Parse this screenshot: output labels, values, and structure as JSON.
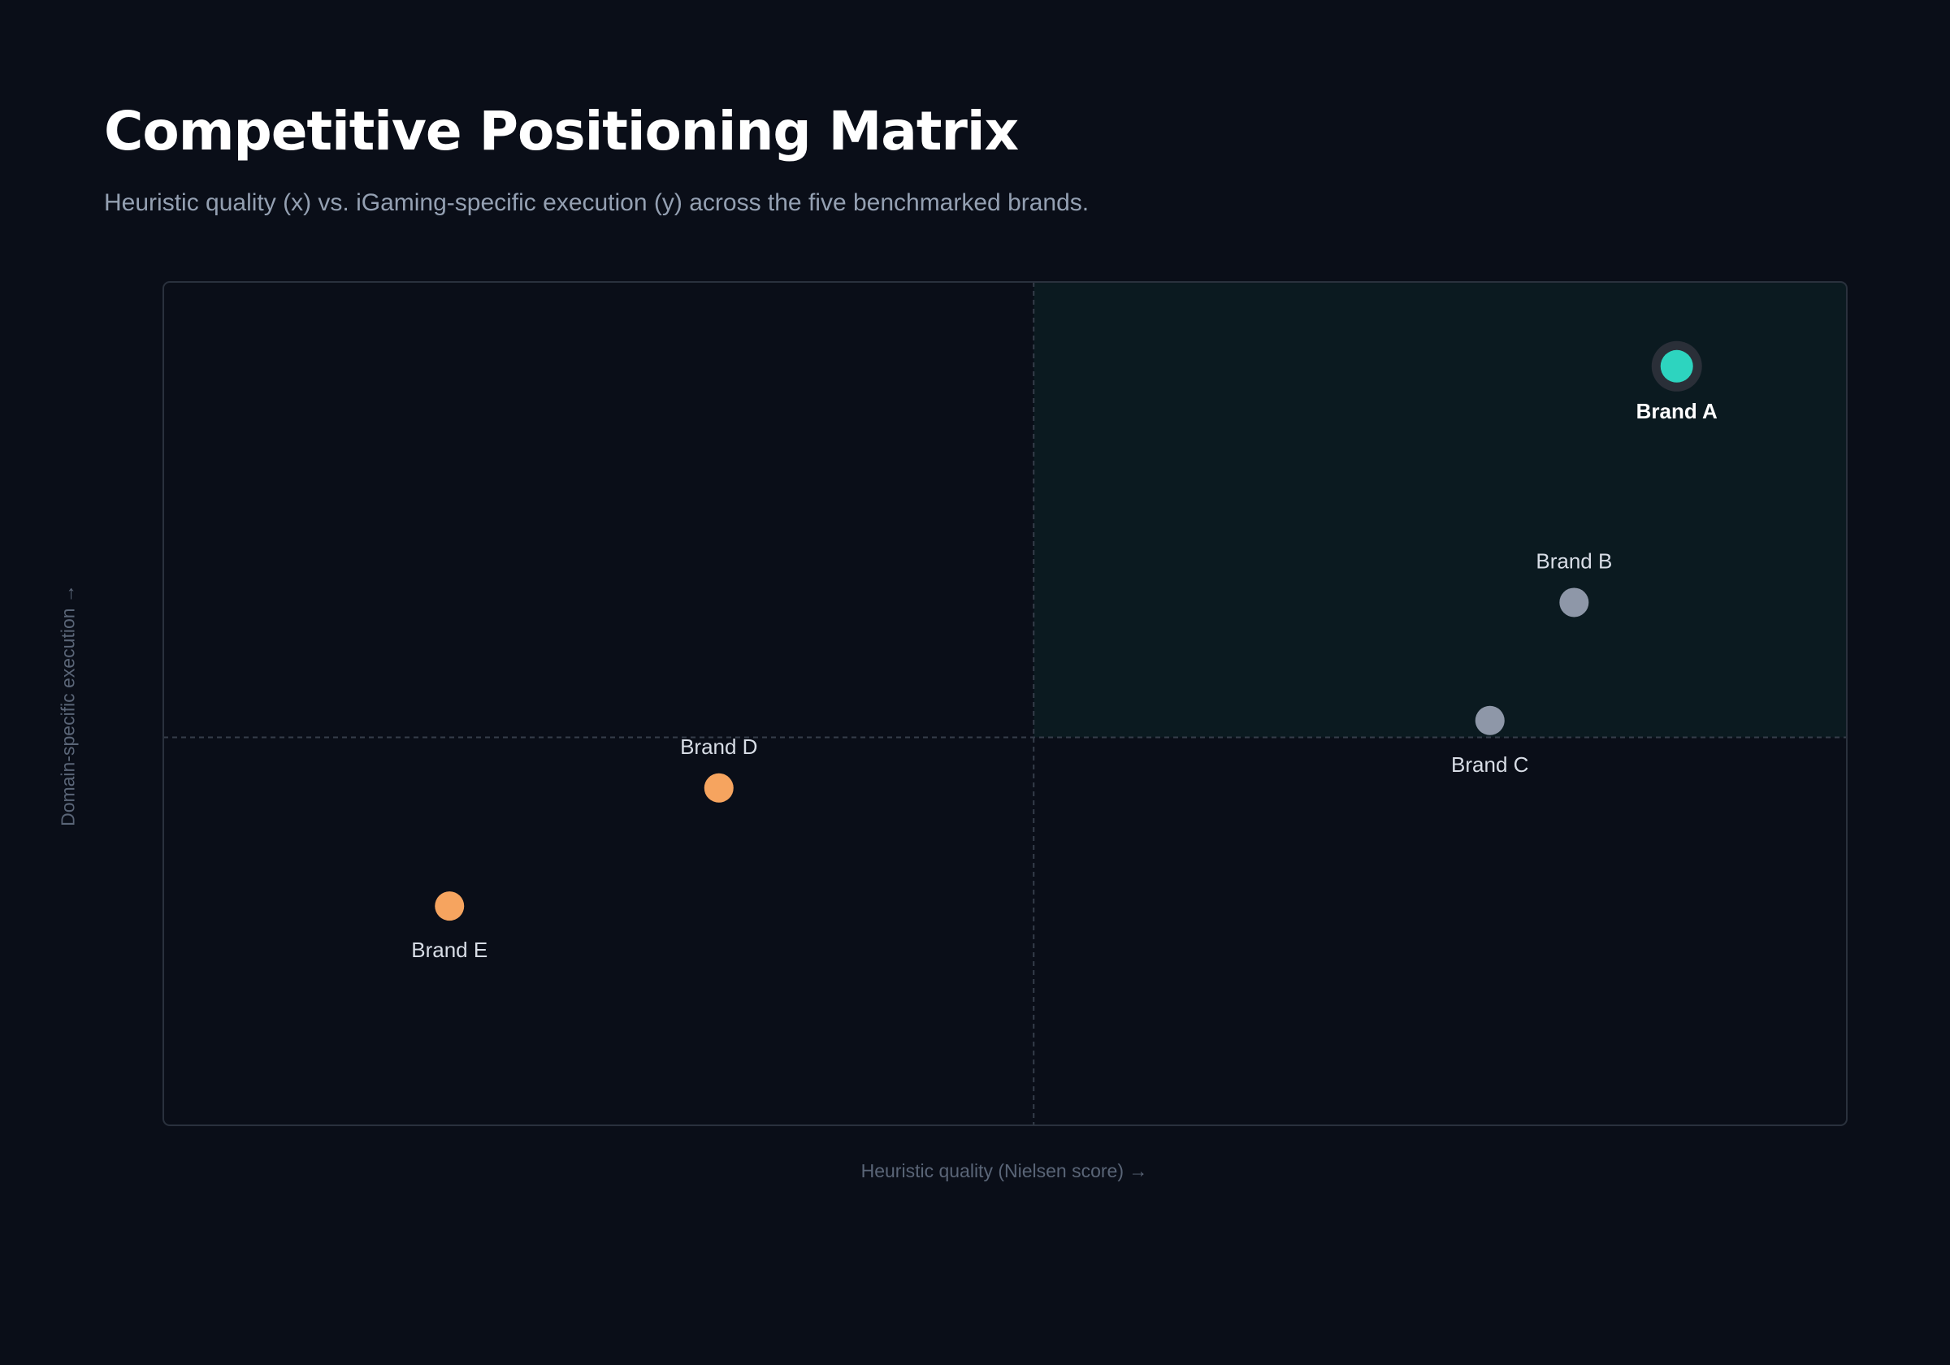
{
  "header": {
    "title": "Competitive Positioning Matrix",
    "subtitle": "Heuristic quality (x) vs. iGaming-specific execution (y) across the five benchmarked brands."
  },
  "chart_data": {
    "type": "scatter",
    "title": "Competitive Positioning Matrix",
    "subtitle": "Heuristic quality (x) vs. iGaming-specific execution (y) across the five benchmarked brands.",
    "xlabel": "Heuristic quality (Nielsen score) →",
    "ylabel": "Domain-specific execution →",
    "xlim": [
      0,
      100
    ],
    "ylim": [
      0,
      100
    ],
    "quadrant_split": {
      "x": 51.7,
      "y": 46
    },
    "highlighted_quadrant": "top-right",
    "grid": false,
    "points": [
      {
        "name": "Brand A",
        "x": 89.9,
        "y": 90,
        "color": "#2dd4bf",
        "highlight": true,
        "label_position": "below"
      },
      {
        "name": "Brand B",
        "x": 83.8,
        "y": 62,
        "color": "#8e97a8",
        "highlight": false,
        "label_position": "above"
      },
      {
        "name": "Brand C",
        "x": 78.8,
        "y": 48,
        "color": "#8e97a8",
        "highlight": false,
        "label_position": "below"
      },
      {
        "name": "Brand D",
        "x": 33,
        "y": 40,
        "color": "#f6a45f",
        "highlight": false,
        "label_position": "above"
      },
      {
        "name": "Brand E",
        "x": 17,
        "y": 26,
        "color": "#f6a45f",
        "highlight": false,
        "label_position": "below"
      }
    ],
    "colors": {
      "background": "#0a0e18",
      "plot_border": "#2a313d",
      "highlight_quadrant": "#0b1a20",
      "divider": "#353d4a",
      "leader": "#2dd4bf",
      "competitor": "#8e97a8",
      "laggard": "#f6a45f"
    }
  }
}
